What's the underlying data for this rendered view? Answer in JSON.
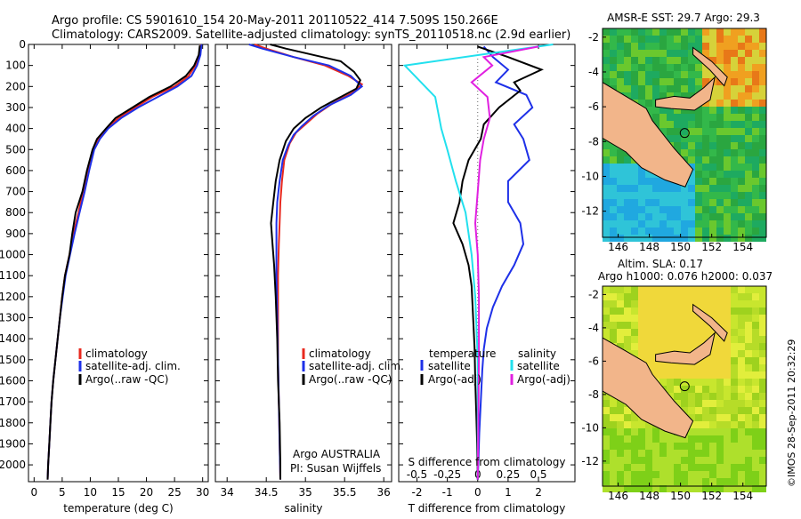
{
  "title_line1": "Argo profile: CS 5901610_154 20-May-2011 20110522_414 7.509S 150.266E",
  "title_line2": "Climatology: CARS2009. Satellite-adjusted climatology: synTS_20110518.nc (2.9d earlier)",
  "side_stamp": "©IMOS 28-Sep-2011 20:32:29",
  "argo_label": "Argo AUSTRALIA",
  "pi_label": "PI: Susan Wijffels",
  "colors": {
    "climatology": "#e8281e",
    "satellite": "#1e30e8",
    "argo": "#000000",
    "sal_satellite": "#22e0ee",
    "sal_argo": "#e020e0"
  },
  "chart_data": [
    {
      "type": "line",
      "xlabel": "temperature (deg C)",
      "ylabel": "",
      "xlim": [
        -1,
        31
      ],
      "ylim": [
        2080,
        0
      ],
      "x_ticks": [
        0,
        5,
        10,
        15,
        20,
        25,
        30
      ],
      "y_ticks": [
        0,
        100,
        200,
        300,
        400,
        500,
        600,
        700,
        800,
        900,
        1000,
        1100,
        1200,
        1300,
        1400,
        1500,
        1600,
        1700,
        1800,
        1900,
        2000
      ],
      "legend": [
        "climatology",
        "satellite-adj. clim.",
        "Argo(..raw -QC)"
      ],
      "series": [
        {
          "name": "climatology",
          "color": "#e8281e",
          "points": [
            [
              29.7,
              0
            ],
            [
              29.4,
              50
            ],
            [
              28.7,
              100
            ],
            [
              27.5,
              150
            ],
            [
              25,
              200
            ],
            [
              21,
              250
            ],
            [
              18,
              300
            ],
            [
              15,
              350
            ],
            [
              13,
              400
            ],
            [
              11.5,
              450
            ],
            [
              10.5,
              500
            ],
            [
              9.5,
              600
            ],
            [
              8.7,
              700
            ],
            [
              7.9,
              800
            ],
            [
              7.0,
              900
            ],
            [
              6.3,
              1000
            ],
            [
              5.5,
              1100
            ],
            [
              5.0,
              1200
            ],
            [
              4.6,
              1300
            ],
            [
              4.2,
              1400
            ],
            [
              3.8,
              1500
            ],
            [
              3.4,
              1600
            ],
            [
              3.1,
              1700
            ],
            [
              2.9,
              1800
            ],
            [
              2.7,
              1900
            ],
            [
              2.5,
              2000
            ],
            [
              2.4,
              2070
            ]
          ]
        },
        {
          "name": "satellite-adj. clim.",
          "color": "#1e30e8",
          "points": [
            [
              29.8,
              0
            ],
            [
              29.6,
              50
            ],
            [
              29,
              100
            ],
            [
              28,
              150
            ],
            [
              25.5,
              200
            ],
            [
              22,
              250
            ],
            [
              18.5,
              300
            ],
            [
              15.5,
              350
            ],
            [
              13.2,
              400
            ],
            [
              11.7,
              450
            ],
            [
              10.7,
              500
            ],
            [
              9.8,
              600
            ],
            [
              9,
              700
            ],
            [
              8.1,
              800
            ],
            [
              7.2,
              900
            ],
            [
              6.4,
              1000
            ],
            [
              5.6,
              1100
            ],
            [
              5.1,
              1200
            ],
            [
              4.6,
              1300
            ],
            [
              4.2,
              1400
            ],
            [
              3.8,
              1500
            ],
            [
              3.4,
              1600
            ],
            [
              3.1,
              1700
            ],
            [
              2.9,
              1800
            ],
            [
              2.7,
              1900
            ],
            [
              2.5,
              2000
            ],
            [
              2.4,
              2070
            ]
          ]
        },
        {
          "name": "Argo(..raw -QC)",
          "color": "#000000",
          "points": [
            [
              29.5,
              5
            ],
            [
              29.3,
              50
            ],
            [
              28.5,
              100
            ],
            [
              27,
              150
            ],
            [
              24.3,
              200
            ],
            [
              20.5,
              250
            ],
            [
              17.5,
              300
            ],
            [
              14.5,
              350
            ],
            [
              12.8,
              400
            ],
            [
              11.2,
              450
            ],
            [
              10.4,
              500
            ],
            [
              9.4,
              600
            ],
            [
              8.6,
              700
            ],
            [
              7.4,
              800
            ],
            [
              6.8,
              900
            ],
            [
              6.3,
              1000
            ],
            [
              5.5,
              1100
            ],
            [
              5.0,
              1200
            ],
            [
              4.6,
              1300
            ],
            [
              4.2,
              1400
            ],
            [
              3.8,
              1500
            ],
            [
              3.4,
              1600
            ],
            [
              3.1,
              1700
            ],
            [
              2.9,
              1800
            ],
            [
              2.7,
              1900
            ],
            [
              2.5,
              2000
            ],
            [
              2.4,
              2070
            ]
          ]
        }
      ]
    },
    {
      "type": "line",
      "xlabel": "salinity",
      "ylabel": "",
      "xlim": [
        33.85,
        36.1
      ],
      "ylim": [
        2080,
        0
      ],
      "x_ticks": [
        34,
        34.5,
        35,
        35.5,
        36
      ],
      "y_ticks": [],
      "legend": [
        "climatology",
        "satellite-adj. clim.",
        "Argo(..raw -QC)"
      ],
      "series": [
        {
          "name": "climatology",
          "color": "#e8281e",
          "points": [
            [
              34.35,
              0
            ],
            [
              34.5,
              20
            ],
            [
              34.85,
              60
            ],
            [
              35.25,
              100
            ],
            [
              35.55,
              150
            ],
            [
              35.72,
              190
            ],
            [
              35.6,
              230
            ],
            [
              35.35,
              280
            ],
            [
              35.15,
              330
            ],
            [
              35.0,
              380
            ],
            [
              34.88,
              420
            ],
            [
              34.8,
              470
            ],
            [
              34.73,
              550
            ],
            [
              34.7,
              650
            ],
            [
              34.68,
              750
            ],
            [
              34.67,
              850
            ],
            [
              34.66,
              950
            ],
            [
              34.65,
              1100
            ],
            [
              34.65,
              1300
            ],
            [
              34.65,
              1500
            ],
            [
              34.66,
              1700
            ],
            [
              34.67,
              1900
            ],
            [
              34.68,
              2070
            ]
          ]
        },
        {
          "name": "satellite-adj. clim.",
          "color": "#1e30e8",
          "points": [
            [
              34.28,
              0
            ],
            [
              34.45,
              20
            ],
            [
              34.85,
              60
            ],
            [
              35.3,
              100
            ],
            [
              35.58,
              150
            ],
            [
              35.72,
              200
            ],
            [
              35.58,
              240
            ],
            [
              35.3,
              290
            ],
            [
              35.1,
              340
            ],
            [
              34.95,
              390
            ],
            [
              34.85,
              430
            ],
            [
              34.78,
              480
            ],
            [
              34.71,
              550
            ],
            [
              34.67,
              650
            ],
            [
              34.64,
              750
            ],
            [
              34.63,
              850
            ],
            [
              34.63,
              950
            ],
            [
              34.63,
              1100
            ],
            [
              34.64,
              1300
            ],
            [
              34.65,
              1500
            ],
            [
              34.66,
              1700
            ],
            [
              34.67,
              1900
            ],
            [
              34.68,
              2070
            ]
          ]
        },
        {
          "name": "Argo(..raw -QC)",
          "color": "#000000",
          "points": [
            [
              34.55,
              0
            ],
            [
              34.75,
              20
            ],
            [
              35.1,
              50
            ],
            [
              35.45,
              80
            ],
            [
              35.62,
              130
            ],
            [
              35.7,
              170
            ],
            [
              35.65,
              210
            ],
            [
              35.45,
              250
            ],
            [
              35.2,
              300
            ],
            [
              35.0,
              350
            ],
            [
              34.85,
              400
            ],
            [
              34.75,
              460
            ],
            [
              34.67,
              550
            ],
            [
              34.62,
              650
            ],
            [
              34.59,
              750
            ],
            [
              34.56,
              850
            ],
            [
              34.58,
              950
            ],
            [
              34.6,
              1050
            ],
            [
              34.62,
              1200
            ],
            [
              34.64,
              1400
            ],
            [
              34.65,
              1600
            ],
            [
              34.67,
              1800
            ],
            [
              34.68,
              2000
            ],
            [
              34.68,
              2070
            ]
          ]
        }
      ]
    },
    {
      "type": "line",
      "xlabel": "T difference from climatology",
      "x2label": "S difference from climatology",
      "xlim": [
        -2.6,
        3.2
      ],
      "x2lim": [
        -0.65,
        0.8
      ],
      "ylim": [
        2080,
        0
      ],
      "x_ticks": [
        -2,
        -1,
        0,
        1,
        2
      ],
      "x2_ticks": [
        -0.5,
        -0.25,
        0,
        0.25,
        0.5
      ],
      "x2_tick_labels": [
        "-0.5",
        "-0.25",
        "0",
        "0.25",
        "0.5"
      ],
      "y_ticks": [],
      "legend_temperature_header": "temperature",
      "legend_salinity_header": "salinity",
      "legend": [
        "satellite",
        "Argo(-adj)",
        "satellite",
        "Argo(-adj)"
      ],
      "series": [
        {
          "name": "satellite",
          "color": "#1e30e8",
          "points": [
            [
              0.2,
              10
            ],
            [
              0.5,
              60
            ],
            [
              1.0,
              120
            ],
            [
              0.6,
              180
            ],
            [
              1.6,
              240
            ],
            [
              1.8,
              300
            ],
            [
              1.2,
              380
            ],
            [
              1.5,
              450
            ],
            [
              1.7,
              550
            ],
            [
              1.0,
              650
            ],
            [
              1.0,
              750
            ],
            [
              1.4,
              850
            ],
            [
              1.5,
              950
            ],
            [
              1.2,
              1050
            ],
            [
              0.8,
              1150
            ],
            [
              0.5,
              1250
            ],
            [
              0.3,
              1350
            ],
            [
              0.2,
              1450
            ],
            [
              0.15,
              1550
            ],
            [
              0.1,
              1700
            ],
            [
              0.05,
              1850
            ],
            [
              0.02,
              2000
            ],
            [
              0.0,
              2070
            ]
          ]
        },
        {
          "name": "Argo(-adj)",
          "color": "#000000",
          "points": [
            [
              0,
              10
            ],
            [
              1.0,
              60
            ],
            [
              2.1,
              120
            ],
            [
              1.2,
              180
            ],
            [
              1.4,
              220
            ],
            [
              0.7,
              300
            ],
            [
              0.2,
              380
            ],
            [
              0.1,
              450
            ],
            [
              -0.3,
              550
            ],
            [
              -0.5,
              650
            ],
            [
              -0.6,
              750
            ],
            [
              -0.8,
              850
            ],
            [
              -0.5,
              950
            ],
            [
              -0.3,
              1050
            ],
            [
              -0.2,
              1150
            ],
            [
              -0.15,
              1300
            ],
            [
              -0.1,
              1450
            ],
            [
              -0.08,
              1600
            ],
            [
              -0.05,
              1750
            ],
            [
              -0.02,
              1900
            ],
            [
              0,
              2070
            ]
          ]
        },
        {
          "name": "satellite",
          "color": "#22e0ee",
          "points": [
            [
              0.62,
              0
            ],
            [
              -0.6,
              100
            ],
            [
              -0.55,
              130
            ],
            [
              -0.35,
              250
            ],
            [
              -0.3,
              400
            ],
            [
              -0.25,
              500
            ],
            [
              -0.18,
              650
            ],
            [
              -0.1,
              800
            ],
            [
              -0.05,
              1000
            ],
            [
              -0.02,
              1200
            ],
            [
              0,
              1500
            ],
            [
              0,
              2070
            ]
          ]
        },
        {
          "name": "Argo(-adj)",
          "color": "#e020e0",
          "points": [
            [
              0.5,
              10
            ],
            [
              0.05,
              60
            ],
            [
              0.12,
              100
            ],
            [
              -0.05,
              180
            ],
            [
              0.08,
              250
            ],
            [
              0.1,
              350
            ],
            [
              0.05,
              450
            ],
            [
              0.02,
              550
            ],
            [
              0.0,
              700
            ],
            [
              -0.02,
              850
            ],
            [
              0.0,
              1000
            ],
            [
              0.01,
              1200
            ],
            [
              0.01,
              1500
            ],
            [
              0,
              2070
            ]
          ]
        }
      ]
    }
  ],
  "maps": [
    {
      "title": "AMSR-E SST: 29.7 Argo: 29.3",
      "title2": "",
      "x_ticks": [
        146,
        148,
        150,
        152,
        154
      ],
      "y_ticks": [
        -2,
        -4,
        -6,
        -8,
        -10,
        -12
      ],
      "lon_range": [
        145,
        155.5
      ],
      "lat_range": [
        -1.5,
        -13.5
      ],
      "float_marker": [
        150.266,
        -7.509
      ]
    },
    {
      "title": "Altim. SLA: 0.17",
      "title2": "Argo h1000: 0.076 h2000: 0.037",
      "x_ticks": [
        146,
        148,
        150,
        152,
        154
      ],
      "y_ticks": [
        -2,
        -4,
        -6,
        -8,
        -10,
        -12
      ],
      "lon_range": [
        145,
        155.5
      ],
      "lat_range": [
        -1.5,
        -13.5
      ],
      "float_marker": [
        150.266,
        -7.509
      ]
    }
  ]
}
